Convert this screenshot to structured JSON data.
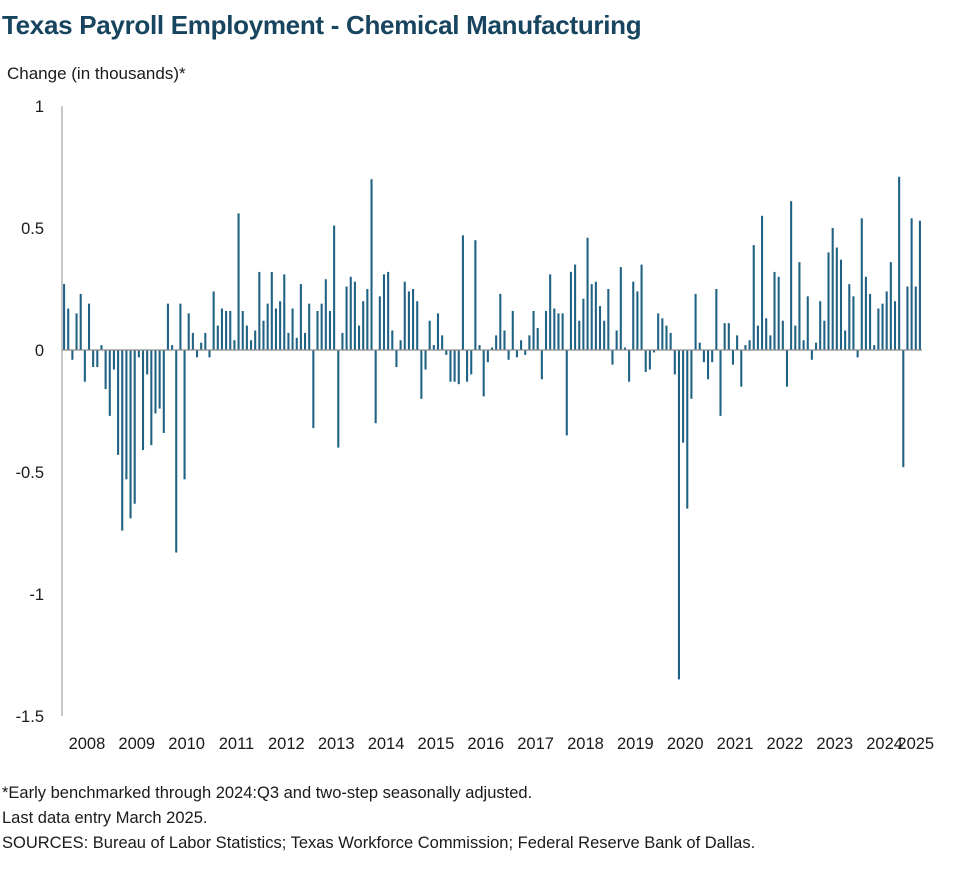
{
  "chart_data": {
    "type": "bar",
    "title": "Texas Payroll Employment - Chemical Manufacturing",
    "ylabel": "Change (in thousands)*",
    "xlabel": "",
    "ylim": [
      -1.5,
      1
    ],
    "yticks": [
      {
        "value": 1,
        "label": "1"
      },
      {
        "value": 0.5,
        "label": "0.5"
      },
      {
        "value": 0,
        "label": "0"
      },
      {
        "value": -0.5,
        "label": "-0.5"
      },
      {
        "value": -1,
        "label": "-1"
      },
      {
        "value": -1.5,
        "label": "-1.5"
      }
    ],
    "x_start": "2008-01",
    "x_end": "2025-03",
    "year_labels": [
      "2008",
      "2009",
      "2010",
      "2011",
      "2012",
      "2013",
      "2014",
      "2015",
      "2016",
      "2017",
      "2018",
      "2019",
      "2020",
      "2021",
      "2022",
      "2023",
      "2024",
      "2025"
    ],
    "colors": {
      "bar": "#1f6283",
      "zero_line": "#8c8c8c",
      "axis": "#8c8c8c"
    },
    "grid": false,
    "legend": "none",
    "values": [
      0.27,
      0.17,
      -0.04,
      0.15,
      0.23,
      -0.13,
      0.19,
      -0.07,
      -0.07,
      0.02,
      -0.16,
      -0.27,
      -0.08,
      -0.43,
      -0.74,
      -0.53,
      -0.69,
      -0.63,
      -0.03,
      -0.41,
      -0.1,
      -0.39,
      -0.26,
      -0.24,
      -0.34,
      0.19,
      0.02,
      -0.83,
      0.19,
      -0.53,
      0.15,
      0.07,
      -0.03,
      0.03,
      0.07,
      -0.03,
      0.24,
      0.1,
      0.17,
      0.16,
      0.16,
      0.04,
      0.56,
      0.16,
      0.1,
      0.04,
      0.08,
      0.32,
      0.12,
      0.19,
      0.32,
      0.17,
      0.2,
      0.31,
      0.07,
      0.17,
      0.05,
      0.27,
      0.07,
      0.19,
      -0.32,
      0.16,
      0.19,
      0.29,
      0.16,
      0.51,
      -0.4,
      0.07,
      0.26,
      0.3,
      0.28,
      0.1,
      0.2,
      0.25,
      0.7,
      -0.3,
      0.22,
      0.31,
      0.32,
      0.08,
      -0.07,
      0.04,
      0.28,
      0.24,
      0.25,
      0.2,
      -0.2,
      -0.08,
      0.12,
      0.02,
      0.15,
      0.06,
      -0.02,
      -0.13,
      -0.13,
      -0.14,
      0.47,
      -0.13,
      -0.1,
      0.45,
      0.02,
      -0.19,
      -0.05,
      0.01,
      0.06,
      0.23,
      0.08,
      -0.04,
      0.16,
      -0.03,
      0.04,
      -0.02,
      0.06,
      0.16,
      0.09,
      -0.12,
      0.16,
      0.31,
      0.17,
      0.15,
      0.15,
      -0.35,
      0.32,
      0.35,
      0.12,
      0.21,
      0.46,
      0.27,
      0.28,
      0.18,
      0.12,
      0.25,
      -0.06,
      0.08,
      0.34,
      0.01,
      -0.13,
      0.28,
      0.24,
      0.35,
      -0.09,
      -0.08,
      -0.01,
      0.15,
      0.13,
      0.1,
      0.07,
      -0.1,
      -1.35,
      -0.38,
      -0.65,
      -0.2,
      0.23,
      0.03,
      -0.05,
      -0.12,
      -0.05,
      0.25,
      -0.27,
      0.11,
      0.11,
      -0.06,
      0.06,
      -0.15,
      0.02,
      0.04,
      0.43,
      0.1,
      0.55,
      0.13,
      0.06,
      0.32,
      0.3,
      0.12,
      -0.15,
      0.61,
      0.1,
      0.36,
      0.04,
      0.22,
      -0.04,
      0.03,
      0.2,
      0.12,
      0.4,
      0.5,
      0.42,
      0.37,
      0.08,
      0.27,
      0.22,
      -0.03,
      0.54,
      0.3,
      0.23,
      0.02,
      0.17,
      0.19,
      0.24,
      0.36,
      0.2,
      0.71,
      -0.48,
      0.26,
      0.54,
      0.26,
      0.53
    ]
  },
  "footnotes": [
    "*Early benchmarked through 2024:Q3 and two-step seasonally adjusted.",
    "Last data entry March 2025.",
    "SOURCES: Bureau of Labor Statistics; Texas Workforce Commission; Federal Reserve Bank of Dallas."
  ]
}
